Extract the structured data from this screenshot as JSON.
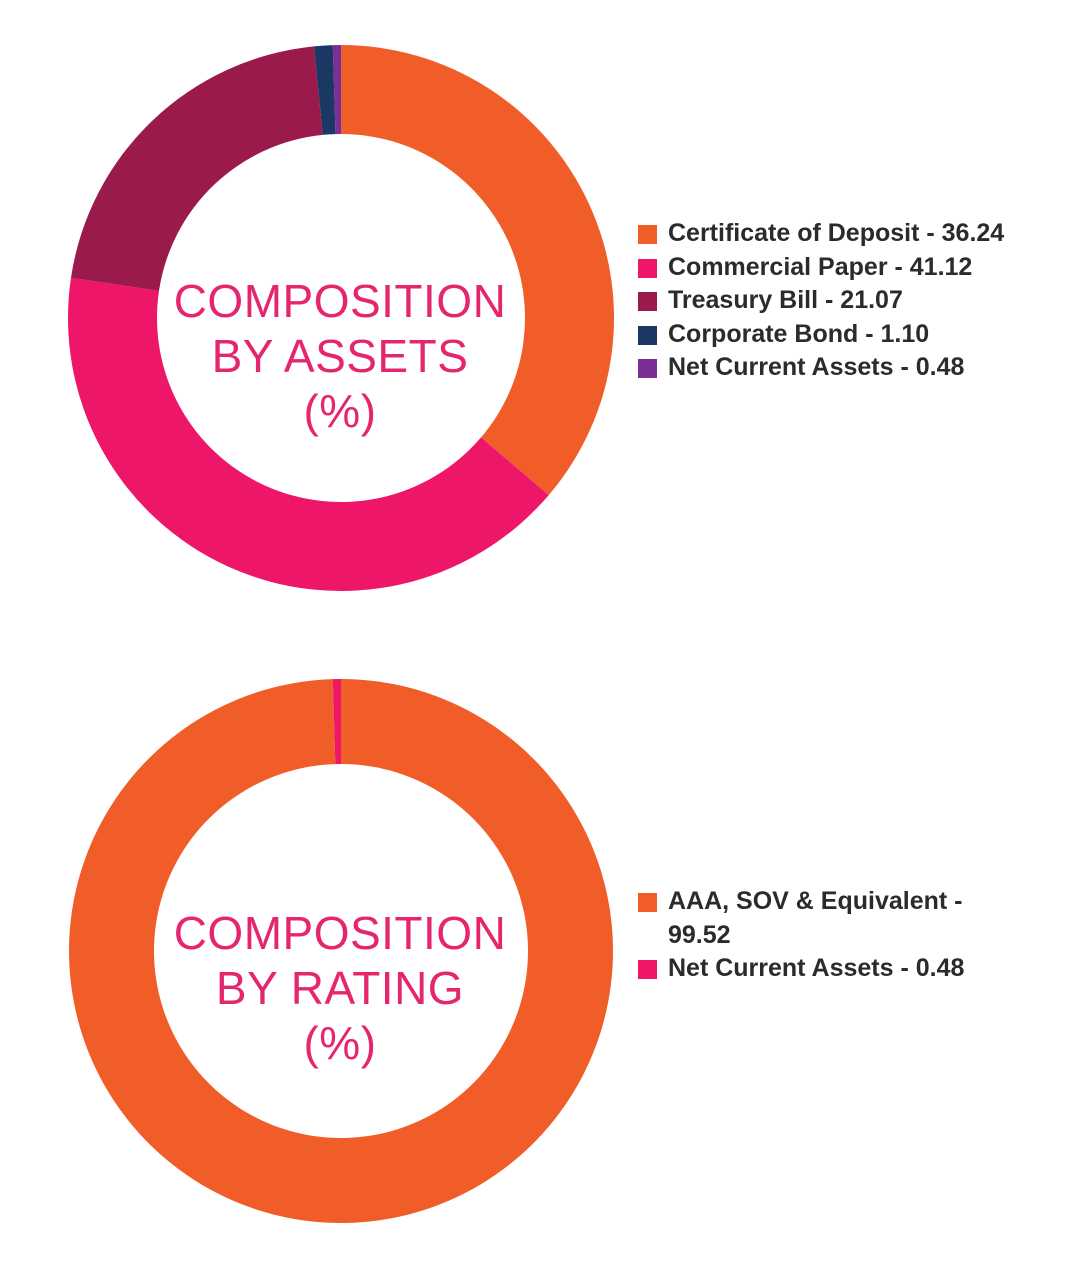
{
  "chart_data": [
    {
      "type": "pie",
      "title_lines": [
        "COMPOSITION",
        "BY ASSETS",
        "(%)"
      ],
      "legend_position": "right",
      "series": [
        {
          "label": "Certificate of Deposit - 36.24",
          "name": "Certificate of Deposit",
          "value": 36.24,
          "color": "#f15d28"
        },
        {
          "label": "Commercial Paper - 41.12",
          "name": "Commercial Paper",
          "value": 41.12,
          "color": "#ed1669"
        },
        {
          "label": "Treasury Bill - 21.07",
          "name": "Treasury Bill",
          "value": 21.07,
          "color": "#991a4b"
        },
        {
          "label": "Corporate Bond - 1.10",
          "name": "Corporate Bond",
          "value": 1.1,
          "color": "#1b3864"
        },
        {
          "label": "Net Current Assets - 0.48",
          "name": "Net Current Assets",
          "value": 0.48,
          "color": "#7a2f96"
        }
      ]
    },
    {
      "type": "pie",
      "title_lines": [
        "COMPOSITION",
        "BY RATING",
        "(%)"
      ],
      "legend_position": "right",
      "series": [
        {
          "label_lines": [
            "AAA, SOV & Equivalent -",
            "99.52"
          ],
          "name": "AAA, SOV & Equivalent",
          "value": 99.52,
          "color": "#f15d28"
        },
        {
          "label": "Net Current Assets - 0.48",
          "name": "Net Current Assets",
          "value": 0.48,
          "color": "#ed1669"
        }
      ]
    }
  ]
}
